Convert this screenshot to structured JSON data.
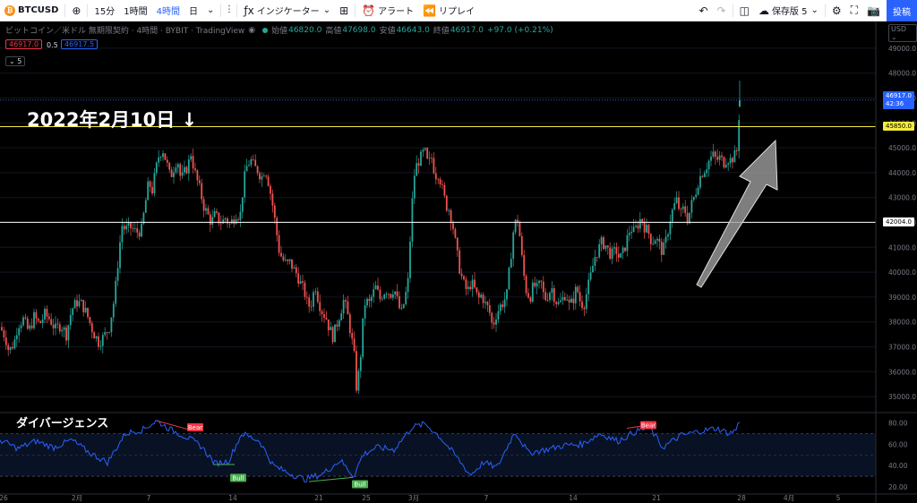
{
  "toolbar": {
    "symbol": "BTCUSD",
    "timeframes": [
      "15分",
      "1時間",
      "4時間",
      "日"
    ],
    "active_timeframe_index": 2,
    "indicators_label": "インジケーター",
    "alert_label": "アラート",
    "replay_label": "リプレイ",
    "save_label": "保存版 5",
    "publish_label": "投稿"
  },
  "legend": {
    "title": "ビットコイン／米ドル 無期限契約 · 4時間 · BYBIT · TradingView",
    "open_label": "始値",
    "open": "46820.0",
    "high_label": "高値",
    "high": "47698.0",
    "low_label": "安値",
    "low": "46643.0",
    "close_label": "終値",
    "close": "46917.0",
    "change": "+97.0 (+0.21%)",
    "bid": "46917.0",
    "spread": "0.5",
    "ask": "46917.5",
    "pane_count": "5"
  },
  "annotations": {
    "date_note": "2022年2月10日 ↓",
    "divergence_title": "ダイバージェンス",
    "bear_label": "Bear",
    "bull_label": "Bull"
  },
  "price_axis": {
    "currency": "USD",
    "ticks": [
      "49000.0",
      "48000.0",
      "47000.0",
      "46000.0",
      "45000.0",
      "44000.0",
      "43000.0",
      "42000.0",
      "41000.0",
      "40000.0",
      "39000.0",
      "38000.0",
      "37000.0",
      "36000.0",
      "35000.0"
    ],
    "last_price": "46917.0",
    "countdown": "42:36",
    "level_yellow": "45850.0",
    "level_white": "42004.0"
  },
  "osc_axis": {
    "ticks": [
      "80.00",
      "60.00",
      "40.00",
      "20.00"
    ]
  },
  "time_axis": {
    "labels": [
      "26",
      "2月",
      "7",
      "14",
      "21",
      "25",
      "3月",
      "7",
      "14",
      "21",
      "28",
      "4月",
      "5"
    ]
  },
  "colors": {
    "up": "#26a69a",
    "down": "#ef5350",
    "osc_line": "#2962ff",
    "yellow_line": "#f5eb3a",
    "bear": "#f23645",
    "bull": "#4caf50",
    "brand": "#2962ff"
  },
  "chart_data": {
    "type": "candlestick",
    "y_range": [
      34500,
      49500
    ],
    "close_points": [
      [
        0,
        37800
      ],
      [
        6,
        37400
      ],
      [
        10,
        36800
      ],
      [
        16,
        37200
      ],
      [
        20,
        37900
      ],
      [
        26,
        38100
      ],
      [
        32,
        37600
      ],
      [
        38,
        38200
      ],
      [
        44,
        37900
      ],
      [
        50,
        38300
      ],
      [
        56,
        38100
      ],
      [
        62,
        37700
      ],
      [
        68,
        37900
      ],
      [
        74,
        37500
      ],
      [
        80,
        38500
      ],
      [
        86,
        38800
      ],
      [
        92,
        38700
      ],
      [
        98,
        38200
      ],
      [
        104,
        37600
      ],
      [
        110,
        37200
      ],
      [
        116,
        37400
      ],
      [
        122,
        37800
      ],
      [
        128,
        39000
      ],
      [
        132,
        40500
      ],
      [
        136,
        41900
      ],
      [
        140,
        41700
      ],
      [
        146,
        41800
      ],
      [
        152,
        41600
      ],
      [
        158,
        41700
      ],
      [
        162,
        42700
      ],
      [
        166,
        43600
      ],
      [
        170,
        43300
      ],
      [
        174,
        44100
      ],
      [
        178,
        44800
      ],
      [
        182,
        44900
      ],
      [
        186,
        44400
      ],
      [
        190,
        43800
      ],
      [
        194,
        44200
      ],
      [
        198,
        44600
      ],
      [
        202,
        43700
      ],
      [
        206,
        44000
      ],
      [
        210,
        44300
      ],
      [
        214,
        44900
      ],
      [
        216,
        44200
      ],
      [
        220,
        43700
      ],
      [
        224,
        43200
      ],
      [
        228,
        42600
      ],
      [
        232,
        42300
      ],
      [
        236,
        42000
      ],
      [
        240,
        42300
      ],
      [
        244,
        42100
      ],
      [
        248,
        42000
      ],
      [
        252,
        42200
      ],
      [
        256,
        41900
      ],
      [
        260,
        42100
      ],
      [
        264,
        42400
      ],
      [
        268,
        42200
      ],
      [
        272,
        43600
      ],
      [
        276,
        44300
      ],
      [
        280,
        44500
      ],
      [
        284,
        44200
      ],
      [
        288,
        44100
      ],
      [
        292,
        43800
      ],
      [
        296,
        44200
      ],
      [
        300,
        43600
      ],
      [
        304,
        42800
      ],
      [
        308,
        41800
      ],
      [
        312,
        40800
      ],
      [
        316,
        40500
      ],
      [
        320,
        40300
      ],
      [
        324,
        40400
      ],
      [
        328,
        40100
      ],
      [
        332,
        39900
      ],
      [
        336,
        39500
      ],
      [
        340,
        39200
      ],
      [
        344,
        38600
      ],
      [
        348,
        38800
      ],
      [
        352,
        39500
      ],
      [
        356,
        38800
      ],
      [
        360,
        38400
      ],
      [
        364,
        38200
      ],
      [
        368,
        37700
      ],
      [
        372,
        37400
      ],
      [
        376,
        37900
      ],
      [
        380,
        38400
      ],
      [
        384,
        38900
      ],
      [
        388,
        38300
      ],
      [
        392,
        37500
      ],
      [
        396,
        36500
      ],
      [
        398,
        35400
      ],
      [
        402,
        36200
      ],
      [
        404,
        37500
      ],
      [
        408,
        38900
      ],
      [
        412,
        38700
      ],
      [
        416,
        39100
      ],
      [
        420,
        39400
      ],
      [
        424,
        38900
      ],
      [
        428,
        39200
      ],
      [
        432,
        39300
      ],
      [
        436,
        39100
      ],
      [
        440,
        39400
      ],
      [
        444,
        38800
      ],
      [
        448,
        38300
      ],
      [
        452,
        38900
      ],
      [
        456,
        39700
      ],
      [
        458,
        41300
      ],
      [
        460,
        42600
      ],
      [
        462,
        43800
      ],
      [
        466,
        44400
      ],
      [
        470,
        44600
      ],
      [
        474,
        44900
      ],
      [
        478,
        44300
      ],
      [
        482,
        44600
      ],
      [
        486,
        43900
      ],
      [
        490,
        44000
      ],
      [
        494,
        43300
      ],
      [
        498,
        42700
      ],
      [
        502,
        42500
      ],
      [
        506,
        41800
      ],
      [
        510,
        40800
      ],
      [
        514,
        40000
      ],
      [
        518,
        39500
      ],
      [
        522,
        39200
      ],
      [
        526,
        39600
      ],
      [
        530,
        39300
      ],
      [
        534,
        38900
      ],
      [
        538,
        39100
      ],
      [
        542,
        38700
      ],
      [
        546,
        38500
      ],
      [
        550,
        37800
      ],
      [
        554,
        38300
      ],
      [
        558,
        38600
      ],
      [
        562,
        38800
      ],
      [
        566,
        39100
      ],
      [
        570,
        40500
      ],
      [
        574,
        41900
      ],
      [
        578,
        42100
      ],
      [
        580,
        41600
      ],
      [
        584,
        40100
      ],
      [
        588,
        39200
      ],
      [
        592,
        39000
      ],
      [
        596,
        39500
      ],
      [
        600,
        39300
      ],
      [
        604,
        39600
      ],
      [
        608,
        38900
      ],
      [
        612,
        39100
      ],
      [
        616,
        39400
      ],
      [
        620,
        38900
      ],
      [
        624,
        38700
      ],
      [
        628,
        38900
      ],
      [
        632,
        39200
      ],
      [
        636,
        38600
      ],
      [
        640,
        38900
      ],
      [
        644,
        39400
      ],
      [
        648,
        38800
      ],
      [
        652,
        38700
      ],
      [
        656,
        39300
      ],
      [
        660,
        39900
      ],
      [
        664,
        40600
      ],
      [
        668,
        40900
      ],
      [
        672,
        41200
      ],
      [
        676,
        41100
      ],
      [
        680,
        40800
      ],
      [
        684,
        40700
      ],
      [
        688,
        40900
      ],
      [
        692,
        40500
      ],
      [
        696,
        40800
      ],
      [
        700,
        41300
      ],
      [
        704,
        41800
      ],
      [
        708,
        41600
      ],
      [
        712,
        41900
      ],
      [
        716,
        42200
      ],
      [
        720,
        41800
      ],
      [
        724,
        41600
      ],
      [
        728,
        41200
      ],
      [
        732,
        41400
      ],
      [
        736,
        41100
      ],
      [
        740,
        40800
      ],
      [
        744,
        41300
      ],
      [
        748,
        42100
      ],
      [
        752,
        42600
      ],
      [
        756,
        42900
      ],
      [
        760,
        42300
      ],
      [
        764,
        42600
      ],
      [
        768,
        42100
      ],
      [
        772,
        42700
      ],
      [
        776,
        43100
      ],
      [
        780,
        43700
      ],
      [
        784,
        44000
      ],
      [
        788,
        44200
      ],
      [
        792,
        44500
      ],
      [
        796,
        44700
      ],
      [
        800,
        44500
      ],
      [
        804,
        44600
      ],
      [
        808,
        44400
      ],
      [
        812,
        44600
      ],
      [
        816,
        44500
      ],
      [
        820,
        44700
      ],
      [
        822,
        44600
      ],
      [
        824,
        45300
      ],
      [
        826,
        46917
      ]
    ],
    "horizontal_levels": [
      45850.0,
      42004.0
    ],
    "oscillator": {
      "name": "ダイバージェンス",
      "y_range": [
        15,
        88
      ],
      "bands": [
        70,
        30
      ],
      "midline": 50,
      "points": [
        [
          0,
          64
        ],
        [
          20,
          56
        ],
        [
          40,
          63
        ],
        [
          60,
          57
        ],
        [
          80,
          64
        ],
        [
          100,
          52
        ],
        [
          120,
          43
        ],
        [
          140,
          70
        ],
        [
          160,
          74
        ],
        [
          175,
          82
        ],
        [
          190,
          74
        ],
        [
          210,
          66
        ],
        [
          225,
          58
        ],
        [
          240,
          42
        ],
        [
          255,
          44
        ],
        [
          270,
          70
        ],
        [
          290,
          63
        ],
        [
          305,
          40
        ],
        [
          320,
          34
        ],
        [
          340,
          27
        ],
        [
          360,
          32
        ],
        [
          380,
          45
        ],
        [
          395,
          30
        ],
        [
          405,
          50
        ],
        [
          420,
          57
        ],
        [
          440,
          55
        ],
        [
          460,
          76
        ],
        [
          475,
          79
        ],
        [
          490,
          68
        ],
        [
          510,
          48
        ],
        [
          525,
          31
        ],
        [
          540,
          43
        ],
        [
          555,
          38
        ],
        [
          575,
          72
        ],
        [
          590,
          52
        ],
        [
          610,
          55
        ],
        [
          630,
          59
        ],
        [
          650,
          60
        ],
        [
          670,
          70
        ],
        [
          690,
          63
        ],
        [
          710,
          72
        ],
        [
          725,
          76
        ],
        [
          740,
          57
        ],
        [
          760,
          68
        ],
        [
          780,
          72
        ],
        [
          800,
          75
        ],
        [
          815,
          70
        ],
        [
          822,
          74
        ],
        [
          826,
          82
        ]
      ],
      "markers": [
        {
          "label": "Bear",
          "x": 210,
          "value": 78
        },
        {
          "label": "Bull",
          "x": 258,
          "value": 34
        },
        {
          "label": "Bull",
          "x": 394,
          "value": 28
        },
        {
          "label": "Bear",
          "x": 716,
          "value": 80
        }
      ]
    }
  }
}
